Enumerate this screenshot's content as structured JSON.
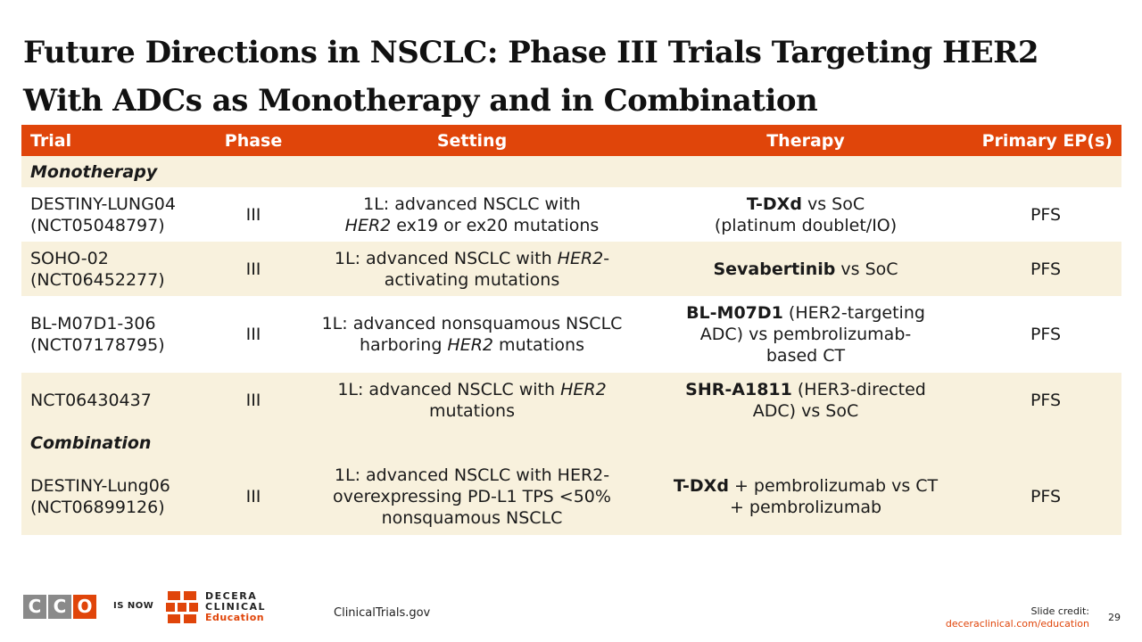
{
  "title_line1": "Future Directions in NSCLC: Phase III Trials Targeting HER2",
  "title_line2": "With ADCs as Monotherapy and in Combination",
  "table": {
    "headers": [
      "Trial",
      "Phase",
      "Setting",
      "Therapy",
      "Primary EP(s)"
    ],
    "sections": [
      {
        "label": "Monotherapy",
        "rows": [
          {
            "trial": [
              "DESTINY-LUNG04",
              "(NCT05048797)"
            ],
            "phase": "III",
            "setting": [
              [
                "1L: advanced NSCLC with"
              ],
              [
                "",
                "HER2",
                " ex19 or ex20 mutations"
              ]
            ],
            "therapy_bold": "T-DXd",
            "therapy_rest": [
              " vs SoC",
              "(platinum doublet/IO)"
            ],
            "ep": "PFS"
          },
          {
            "trial": [
              "SOHO-02",
              "(NCT06452277)"
            ],
            "phase": "III",
            "setting": [
              [
                "1L: advanced NSCLC with ",
                "HER2",
                "-"
              ],
              [
                "activating mutations"
              ]
            ],
            "therapy_bold": "Sevabertinib",
            "therapy_rest": [
              " vs SoC"
            ],
            "ep": "PFS"
          },
          {
            "trial": [
              "BL-M07D1-306",
              "(NCT07178795)"
            ],
            "phase": "III",
            "setting": [
              [
                "1L: advanced nonsquamous NSCLC"
              ],
              [
                "harboring ",
                "HER2",
                " mutations"
              ]
            ],
            "therapy_bold": "BL-M07D1",
            "therapy_rest": [
              " (HER2-targeting",
              "ADC) vs pembrolizumab-",
              "based CT"
            ],
            "ep": "PFS"
          },
          {
            "trial": [
              "NCT06430437"
            ],
            "phase": "III",
            "setting": [
              [
                "1L: advanced NSCLC with ",
                "HER2"
              ],
              [
                "mutations"
              ]
            ],
            "therapy_bold": "SHR-A1811",
            "therapy_rest": [
              " (HER3-directed",
              "ADC) vs SoC"
            ],
            "ep": "PFS"
          }
        ]
      },
      {
        "label": "Combination",
        "rows": [
          {
            "trial": [
              "DESTINY-Lung06",
              "(NCT06899126)"
            ],
            "phase": "III",
            "setting": [
              [
                "1L: advanced NSCLC with HER2-"
              ],
              [
                "overexpressing PD-L1 TPS <50%"
              ],
              [
                "nonsquamous NSCLC"
              ]
            ],
            "therapy_bold": "T-DXd",
            "therapy_rest": [
              " + pembrolizumab vs CT",
              "+ pembrolizumab"
            ],
            "ep": "PFS"
          }
        ]
      }
    ]
  },
  "footer": {
    "cco_letters": [
      "C",
      "C",
      "O"
    ],
    "is_now": "IS NOW",
    "decera_line1": "DECERA",
    "decera_line2": "CLINICAL",
    "decera_line3": "Education",
    "source": "ClinicalTrials.gov",
    "credit_label": "Slide credit:",
    "credit_url": "deceraclinical.com/education",
    "page_number": "29"
  },
  "colors": {
    "accent": "#e0450a",
    "row_tint": "#f8f1dd",
    "logo_gray": "#8a8a8a"
  },
  "icons": {
    "cco_logo": "cco-logo-icon",
    "decera_logo": "decera-logo-icon"
  }
}
